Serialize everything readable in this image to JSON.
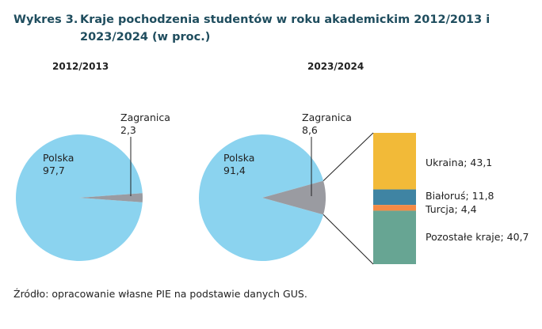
{
  "figure": {
    "number": "Wykres 3.",
    "title": "Kraje pochodzenia studentów w roku akademickim 2012/2013 i 2023/2024 (w proc.)",
    "source": "Źródło: opracowanie własne PIE na podstawie danych GUS."
  },
  "chart_data": [
    {
      "type": "pie",
      "title": "2012/2013",
      "categories": [
        "Polska",
        "Zagranica"
      ],
      "values": [
        97.7,
        2.3
      ],
      "value_labels": [
        "97,7",
        "2,3"
      ],
      "colors": [
        "#8bd3ef",
        "#9a9ba1"
      ]
    },
    {
      "type": "pie",
      "title": "2023/2024",
      "categories": [
        "Polska",
        "Zagranica"
      ],
      "values": [
        91.4,
        8.6
      ],
      "value_labels": [
        "91,4",
        "8,6"
      ],
      "colors": [
        "#8bd3ef",
        "#9a9ba1"
      ]
    },
    {
      "type": "bar",
      "stacked": true,
      "breakdown_of": "Zagranica (2023/2024)",
      "categories": [
        "Ukraina",
        "Białoruś",
        "Turcja",
        "Pozostałe kraje"
      ],
      "values": [
        43.1,
        11.8,
        4.4,
        40.7
      ],
      "labels": [
        "Ukraina; 43,1",
        "Białoruś; 11,8",
        "Turcja; 4,4",
        "Pozostałe kraje; 40,7"
      ],
      "colors": [
        "#f2ba38",
        "#3f84a3",
        "#f58a45",
        "#67a593"
      ]
    }
  ]
}
